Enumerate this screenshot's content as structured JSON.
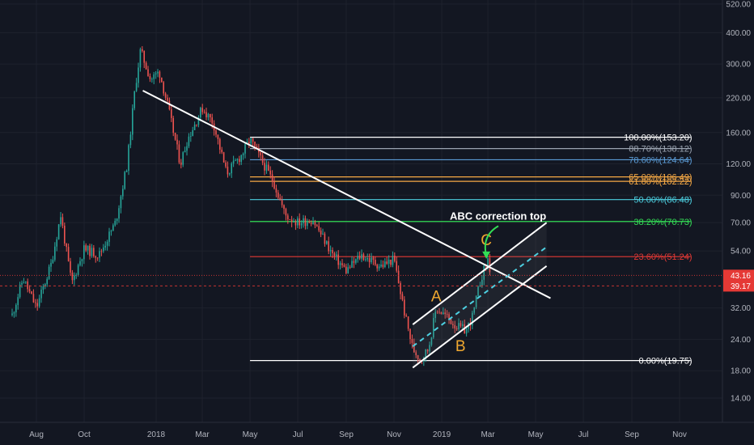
{
  "chart_data": {
    "type": "candlestick",
    "y_scale": "log",
    "ylim": [
      11.5,
      540
    ],
    "y_ticks": [
      "520.00",
      "400.00",
      "300.00",
      "220.00",
      "160.00",
      "120.00",
      "90.00",
      "70.00",
      "54.00",
      "43.16",
      "39.17",
      "32.00",
      "24.00",
      "18.00",
      "14.00"
    ],
    "x_ticks": [
      "Aug",
      "Oct",
      "2018",
      "Mar",
      "May",
      "Jul",
      "Sep",
      "Nov",
      "2019",
      "Mar",
      "May",
      "Jul",
      "Sep",
      "Nov"
    ],
    "price_path": [
      [
        "2017-07-01",
        30
      ],
      [
        "2017-07-15",
        42
      ],
      [
        "2017-08-01",
        32
      ],
      [
        "2017-08-20",
        48
      ],
      [
        "2017-09-01",
        75
      ],
      [
        "2017-09-15",
        40
      ],
      [
        "2017-10-01",
        55
      ],
      [
        "2017-10-20",
        52
      ],
      [
        "2017-11-10",
        70
      ],
      [
        "2017-11-25",
        120
      ],
      [
        "2017-12-05",
        240
      ],
      [
        "2017-12-12",
        340
      ],
      [
        "2017-12-25",
        260
      ],
      [
        "2018-01-05",
        280
      ],
      [
        "2018-01-15",
        210
      ],
      [
        "2018-02-01",
        120
      ],
      [
        "2018-02-10",
        150
      ],
      [
        "2018-03-01",
        200
      ],
      [
        "2018-03-15",
        175
      ],
      [
        "2018-04-01",
        110
      ],
      [
        "2018-04-20",
        130
      ],
      [
        "2018-05-01",
        150
      ],
      [
        "2018-05-15",
        125
      ],
      [
        "2018-06-01",
        100
      ],
      [
        "2018-06-15",
        75
      ],
      [
        "2018-07-01",
        70
      ],
      [
        "2018-07-20",
        72
      ],
      [
        "2018-08-15",
        52
      ],
      [
        "2018-09-01",
        45
      ],
      [
        "2018-09-20",
        52
      ],
      [
        "2018-10-15",
        47
      ],
      [
        "2018-11-01",
        50
      ],
      [
        "2018-11-15",
        30
      ],
      [
        "2018-11-25",
        22
      ],
      [
        "2018-12-05",
        20
      ],
      [
        "2018-12-15",
        22
      ],
      [
        "2018-12-25",
        32
      ],
      [
        "2019-01-05",
        30
      ],
      [
        "2019-01-20",
        27
      ],
      [
        "2019-02-01",
        26
      ],
      [
        "2019-02-10",
        30
      ],
      [
        "2019-02-20",
        42
      ],
      [
        "2019-03-01",
        50
      ],
      [
        "2019-03-05",
        43
      ]
    ],
    "fib_levels": [
      {
        "label": "100.00%(153.20)",
        "value": 153.2,
        "color": "#ffffff"
      },
      {
        "label": "88.70%(138.12)",
        "value": 138.12,
        "color": "#9aa3b0"
      },
      {
        "label": "78.60%(124.64)",
        "value": 124.64,
        "color": "#5b9bd5"
      },
      {
        "label": "65.00%(106.49)",
        "value": 106.49,
        "color": "#f6a945"
      },
      {
        "label": "61.80%(102.22)",
        "value": 102.22,
        "color": "#f6a945"
      },
      {
        "label": "50.00%(86.48)",
        "value": 86.48,
        "color": "#4dd0e1"
      },
      {
        "label": "38.20%(70.73)",
        "value": 70.73,
        "color": "#33dd55"
      },
      {
        "label": "23.60%(51.24)",
        "value": 51.24,
        "color": "#e53935"
      },
      {
        "label": "0.00%(19.75)",
        "value": 19.75,
        "color": "#ffffff"
      }
    ],
    "price_tags": [
      {
        "label": "43.16",
        "value": 43.16,
        "color": "#e53935"
      },
      {
        "label": "39.17",
        "value": 39.17,
        "color": "#e53935"
      }
    ],
    "trendline": [
      [
        "2017-12-15",
        235
      ],
      [
        "2019-05-20",
        35
      ]
    ],
    "channel_upper": [
      [
        "2018-11-25",
        27.5
      ],
      [
        "2019-05-15",
        70
      ]
    ],
    "channel_lower": [
      [
        "2018-11-25",
        18.5
      ],
      [
        "2019-05-15",
        47
      ]
    ],
    "channel_mid": [
      [
        "2018-11-25",
        22.5
      ],
      [
        "2019-05-15",
        56
      ]
    ],
    "wave_labels": [
      {
        "text": "A",
        "date": "2018-12-25",
        "price": 34
      },
      {
        "text": "B",
        "date": "2019-01-25",
        "price": 21.5
      },
      {
        "text": "C",
        "date": "2019-02-27",
        "price": 57
      }
    ],
    "annotation": {
      "text": "ABC correction top",
      "date": "2019-02-01",
      "price": 72
    }
  }
}
